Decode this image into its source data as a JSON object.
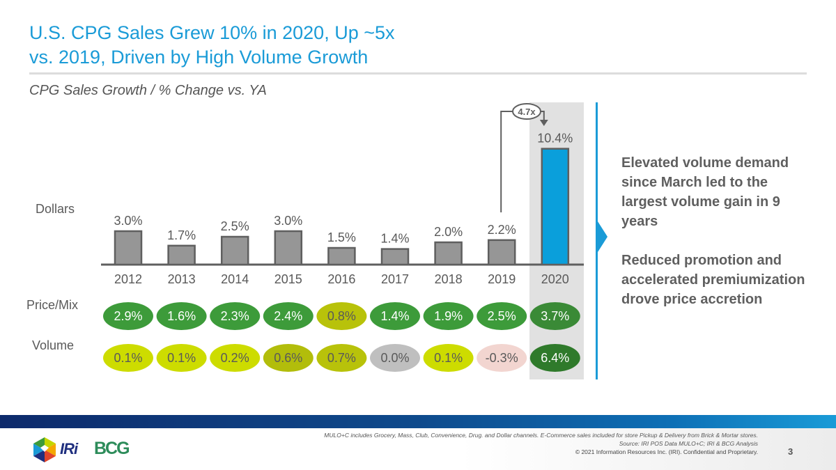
{
  "header": {
    "title_line1": "U.S. CPG Sales Grew 10% in 2020, Up ~5x",
    "title_line2": "vs. 2019, Driven by High Volume Growth",
    "subtitle": "CPG Sales Growth / % Change vs. YA"
  },
  "row_labels": {
    "dollars": "Dollars",
    "price_mix": "Price/Mix",
    "volume": "Volume"
  },
  "chart_data": {
    "type": "bar",
    "title": "CPG Sales Growth / % Change vs. YA",
    "xlabel": "",
    "ylabel": "Dollars",
    "unit": "%",
    "categories": [
      "2012",
      "2013",
      "2014",
      "2015",
      "2016",
      "2017",
      "2018",
      "2019",
      "2020"
    ],
    "series": [
      {
        "name": "Dollars",
        "values": [
          3.0,
          1.7,
          2.5,
          3.0,
          1.5,
          1.4,
          2.0,
          2.2,
          10.4
        ],
        "labels": [
          "3.0%",
          "1.7%",
          "2.5%",
          "3.0%",
          "1.5%",
          "1.4%",
          "2.0%",
          "2.2%",
          "10.4%"
        ]
      },
      {
        "name": "Price/Mix",
        "values": [
          2.9,
          1.6,
          2.3,
          2.4,
          0.8,
          1.4,
          1.9,
          2.5,
          3.7
        ],
        "labels": [
          "2.9%",
          "1.6%",
          "2.3%",
          "2.4%",
          "0.8%",
          "1.4%",
          "1.9%",
          "2.5%",
          "3.7%"
        ]
      },
      {
        "name": "Volume",
        "values": [
          0.1,
          0.1,
          0.2,
          0.6,
          0.7,
          0.0,
          0.1,
          -0.3,
          6.4
        ],
        "labels": [
          "0.1%",
          "0.1%",
          "0.2%",
          "0.6%",
          "0.7%",
          "0.0%",
          "0.1%",
          "-0.3%",
          "6.4%"
        ]
      }
    ],
    "highlight_category": "2020",
    "annotation": {
      "text": "4.7x",
      "from": "2019",
      "to": "2020"
    },
    "ylim": [
      0,
      11
    ],
    "grid": false,
    "colors": {
      "bar": "#969696",
      "bar_outline": "#5f5f5f",
      "highlight_bar": "#0a9fdb",
      "axis": "#5f5f5f",
      "price_pills": [
        "#3d9b3a",
        "#3d9b3a",
        "#3d9b3a",
        "#3d9b3a",
        "#b8c20a",
        "#3d9b3a",
        "#3d9b3a",
        "#3d9b3a",
        "#3a8a36"
      ],
      "volume_pills": [
        "#cddc00",
        "#cddc00",
        "#cddc00",
        "#b2bd0b",
        "#b8c20a",
        "#bfbfbf",
        "#cddc00",
        "#f2d5d0",
        "#2f7a2b"
      ],
      "price_text": [
        "#ffffff",
        "#ffffff",
        "#ffffff",
        "#ffffff",
        "#595959",
        "#ffffff",
        "#ffffff",
        "#ffffff",
        "#ffffff"
      ],
      "volume_text": [
        "#595959",
        "#595959",
        "#595959",
        "#595959",
        "#595959",
        "#595959",
        "#595959",
        "#595959",
        "#ffffff"
      ]
    }
  },
  "takeaways": [
    "Elevated volume demand since March led to the largest volume gain in 9 years",
    "Reduced promotion and accelerated premiumization drove price accretion"
  ],
  "footer": {
    "note": "MULO+C includes Grocery, Mass, Club, Convenience, Drug. and Dollar channels. E-Commerce sales included for store Pickup & Delivery from Brick & Mortar stores.",
    "source": "Source: IRI POS Data MULO+C; IRI & BCG Analysis",
    "copyright": "© 2021 Information Resources Inc. (IRI). Confidential and Proprietary.",
    "page_number": "3",
    "logo_iri": "IRi",
    "logo_bcg": "BCG"
  },
  "accent_color": "#1a9bd7"
}
